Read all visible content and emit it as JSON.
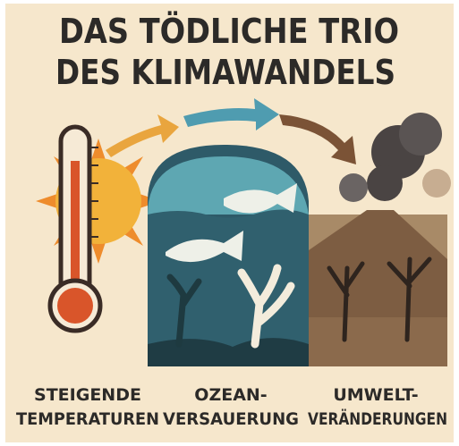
{
  "title": {
    "lines": [
      "DAS TÖDLICHE TRIO",
      "DES KLIMAWANDELS"
    ]
  },
  "panels": [
    {
      "label": [
        "STEIGENDE",
        "TEMPERATUREN"
      ]
    },
    {
      "label": [
        "OZEAN-",
        "VERSAUERUNG"
      ]
    },
    {
      "label": [
        "UMWELT-",
        "VERÄNDERUNGEN"
      ]
    }
  ]
}
